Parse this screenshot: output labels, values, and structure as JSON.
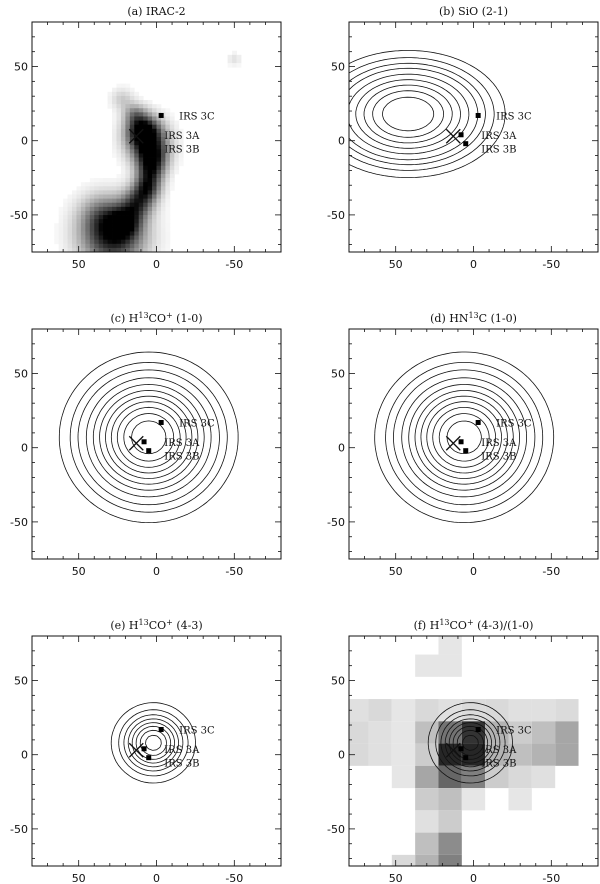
{
  "chart_data": [
    {
      "type": "contour",
      "panel": "(a)",
      "title": "(a) IRAC-2",
      "title_sup": "",
      "xlim": [
        80,
        -80
      ],
      "ylim": [
        -75,
        80
      ],
      "xticks": [
        50,
        0,
        -50
      ],
      "yticks": [
        50,
        0,
        -50
      ],
      "image": "greyscale",
      "levels": [],
      "sources": [
        {
          "name": "IRS 3C",
          "x": -3,
          "y": 17
        },
        {
          "name": "IRS 3A",
          "x": 8,
          "y": 4
        },
        {
          "name": "IRS 3B",
          "x": 5,
          "y": -2
        }
      ],
      "cross": {
        "x": 13,
        "y": 3
      },
      "greyscale_blobs": [
        [
          28,
          -65,
          14,
          0.9
        ],
        [
          20,
          -55,
          7,
          0.6
        ],
        [
          12,
          -42,
          7,
          0.65
        ],
        [
          6,
          -32,
          6,
          0.7
        ],
        [
          4,
          -22,
          6,
          0.55
        ],
        [
          3,
          -12,
          7,
          0.75
        ],
        [
          6,
          0,
          9,
          0.85
        ],
        [
          9,
          8,
          7,
          0.7
        ],
        [
          14,
          18,
          5,
          0.35
        ],
        [
          22,
          28,
          5,
          0.2
        ],
        [
          35,
          -50,
          10,
          0.35
        ],
        [
          -50,
          55,
          3,
          0.12
        ]
      ]
    },
    {
      "type": "contour",
      "panel": "(b)",
      "title": "(b) SiO (2-1)",
      "title_sup": "",
      "xlim": [
        80,
        -80
      ],
      "ylim": [
        -75,
        80
      ],
      "xticks": [
        50,
        0,
        -50
      ],
      "yticks": [
        50,
        0,
        -50
      ],
      "image": "",
      "levels": [
        6,
        9,
        12,
        15,
        19,
        23,
        27,
        31,
        35
      ],
      "sources": [
        {
          "name": "IRS 3C",
          "x": -3,
          "y": 17
        },
        {
          "name": "IRS 3A",
          "x": 8,
          "y": 4
        },
        {
          "name": "IRS 3B",
          "x": 5,
          "y": -2
        }
      ],
      "cross": {
        "x": 13,
        "y": 3
      },
      "emission_peaks": [
        [
          42,
          18,
          32,
          22,
          40
        ]
      ]
    },
    {
      "type": "contour",
      "panel": "(c)",
      "title": "(c) H13CO+ (1-0)",
      "title_sup": "13,+",
      "xlim": [
        80,
        -80
      ],
      "ylim": [
        -75,
        80
      ],
      "xticks": [
        50,
        0,
        -50
      ],
      "yticks": [
        50,
        0,
        -50
      ],
      "image": "",
      "levels": [
        4,
        7,
        10,
        14,
        18,
        22,
        26,
        30,
        34,
        38,
        42
      ],
      "sources": [
        {
          "name": "IRS 3C",
          "x": -3,
          "y": 17
        },
        {
          "name": "IRS 3A",
          "x": 8,
          "y": 4
        },
        {
          "name": "IRS 3B",
          "x": 5,
          "y": -2
        }
      ],
      "cross": {
        "x": 13,
        "y": 3
      },
      "emission_peaks": [
        [
          5,
          7,
          26,
          26,
          46
        ]
      ]
    },
    {
      "type": "contour",
      "panel": "(d)",
      "title": "(d) HN13C (1-0)",
      "title_sup": "13",
      "xlim": [
        80,
        -80
      ],
      "ylim": [
        -75,
        80
      ],
      "xticks": [
        50,
        0,
        -50
      ],
      "yticks": [
        50,
        0,
        -50
      ],
      "image": "",
      "levels": [
        4,
        7,
        10,
        14,
        18,
        22,
        26,
        30,
        34,
        38,
        42
      ],
      "sources": [
        {
          "name": "IRS 3C",
          "x": -3,
          "y": 17
        },
        {
          "name": "IRS 3A",
          "x": 8,
          "y": 4
        },
        {
          "name": "IRS 3B",
          "x": 5,
          "y": -2
        }
      ],
      "cross": {
        "x": 13,
        "y": 3
      },
      "emission_peaks": [
        [
          6,
          7,
          26,
          26,
          46
        ]
      ]
    },
    {
      "type": "contour",
      "panel": "(e)",
      "title": "(e) H13CO+ (4-3)",
      "title_sup": "13,+",
      "xlim": [
        80,
        -80
      ],
      "ylim": [
        -75,
        80
      ],
      "xticks": [
        50,
        0,
        -50
      ],
      "yticks": [
        50,
        0,
        -50
      ],
      "image": "",
      "levels": [
        6,
        12,
        18,
        24,
        30,
        36,
        42,
        48
      ],
      "sources": [
        {
          "name": "IRS 3C",
          "x": -3,
          "y": 17
        },
        {
          "name": "IRS 3A",
          "x": 8,
          "y": 4
        },
        {
          "name": "IRS 3B",
          "x": 5,
          "y": -2
        }
      ],
      "cross": {
        "x": 13,
        "y": 3
      },
      "emission_peaks": [
        [
          2,
          8,
          13,
          13,
          52
        ]
      ]
    },
    {
      "type": "contour",
      "panel": "(f)",
      "title": "(f) H13CO+ (4-3)/(1-0)",
      "title_sup": "13,+",
      "xlim": [
        80,
        -80
      ],
      "ylim": [
        -75,
        80
      ],
      "xticks": [
        50,
        0,
        -50
      ],
      "yticks": [
        50,
        0,
        -50
      ],
      "image": "pixel-grid",
      "levels": [
        6,
        12,
        18,
        24,
        30,
        36,
        42,
        48
      ],
      "sources": [
        {
          "name": "IRS 3C",
          "x": -3,
          "y": 17
        },
        {
          "name": "IRS 3A",
          "x": 8,
          "y": 4
        },
        {
          "name": "IRS 3B",
          "x": 5,
          "y": -2
        }
      ],
      "cross": {
        "x": 13,
        "y": 3
      },
      "emission_peaks": [
        [
          2,
          8,
          13,
          13,
          52
        ]
      ],
      "ratio_pixels": [
        [
          15,
          75,
          0.1
        ],
        [
          30,
          60,
          0.1
        ],
        [
          15,
          60,
          0.1
        ],
        [
          75,
          30,
          0.12
        ],
        [
          60,
          30,
          0.15
        ],
        [
          45,
          30,
          0.1
        ],
        [
          30,
          30,
          0.15
        ],
        [
          15,
          30,
          0.12
        ],
        [
          0,
          30,
          0.14
        ],
        [
          -15,
          30,
          0.15
        ],
        [
          -30,
          30,
          0.12
        ],
        [
          -45,
          30,
          0.12
        ],
        [
          -60,
          30,
          0.14
        ],
        [
          75,
          15,
          0.15
        ],
        [
          60,
          15,
          0.12
        ],
        [
          45,
          15,
          0.1
        ],
        [
          30,
          15,
          0.25
        ],
        [
          15,
          15,
          0.55
        ],
        [
          0,
          15,
          0.8
        ],
        [
          -15,
          15,
          0.3
        ],
        [
          -30,
          15,
          0.2
        ],
        [
          -45,
          15,
          0.25
        ],
        [
          -60,
          15,
          0.35
        ],
        [
          75,
          0,
          0.15
        ],
        [
          60,
          0,
          0.12
        ],
        [
          45,
          0,
          0.1
        ],
        [
          30,
          0,
          0.2
        ],
        [
          15,
          0,
          0.85
        ],
        [
          0,
          0,
          0.85
        ],
        [
          -15,
          0,
          0.3
        ],
        [
          -30,
          0,
          0.25
        ],
        [
          -45,
          0,
          0.3
        ],
        [
          -60,
          0,
          0.35
        ],
        [
          45,
          -15,
          0.1
        ],
        [
          30,
          -15,
          0.35
        ],
        [
          15,
          -15,
          0.6
        ],
        [
          0,
          -15,
          0.5
        ],
        [
          -15,
          -15,
          0.2
        ],
        [
          -30,
          -15,
          0.15
        ],
        [
          -45,
          -15,
          0.12
        ],
        [
          30,
          -30,
          0.2
        ],
        [
          15,
          -30,
          0.25
        ],
        [
          0,
          -30,
          0.1
        ],
        [
          -30,
          -30,
          0.1
        ],
        [
          30,
          -45,
          0.12
        ],
        [
          15,
          -45,
          0.2
        ],
        [
          15,
          -60,
          0.45
        ],
        [
          30,
          -60,
          0.25
        ],
        [
          15,
          -75,
          0.5
        ],
        [
          30,
          -75,
          0.3
        ],
        [
          45,
          -75,
          0.15
        ]
      ]
    }
  ]
}
